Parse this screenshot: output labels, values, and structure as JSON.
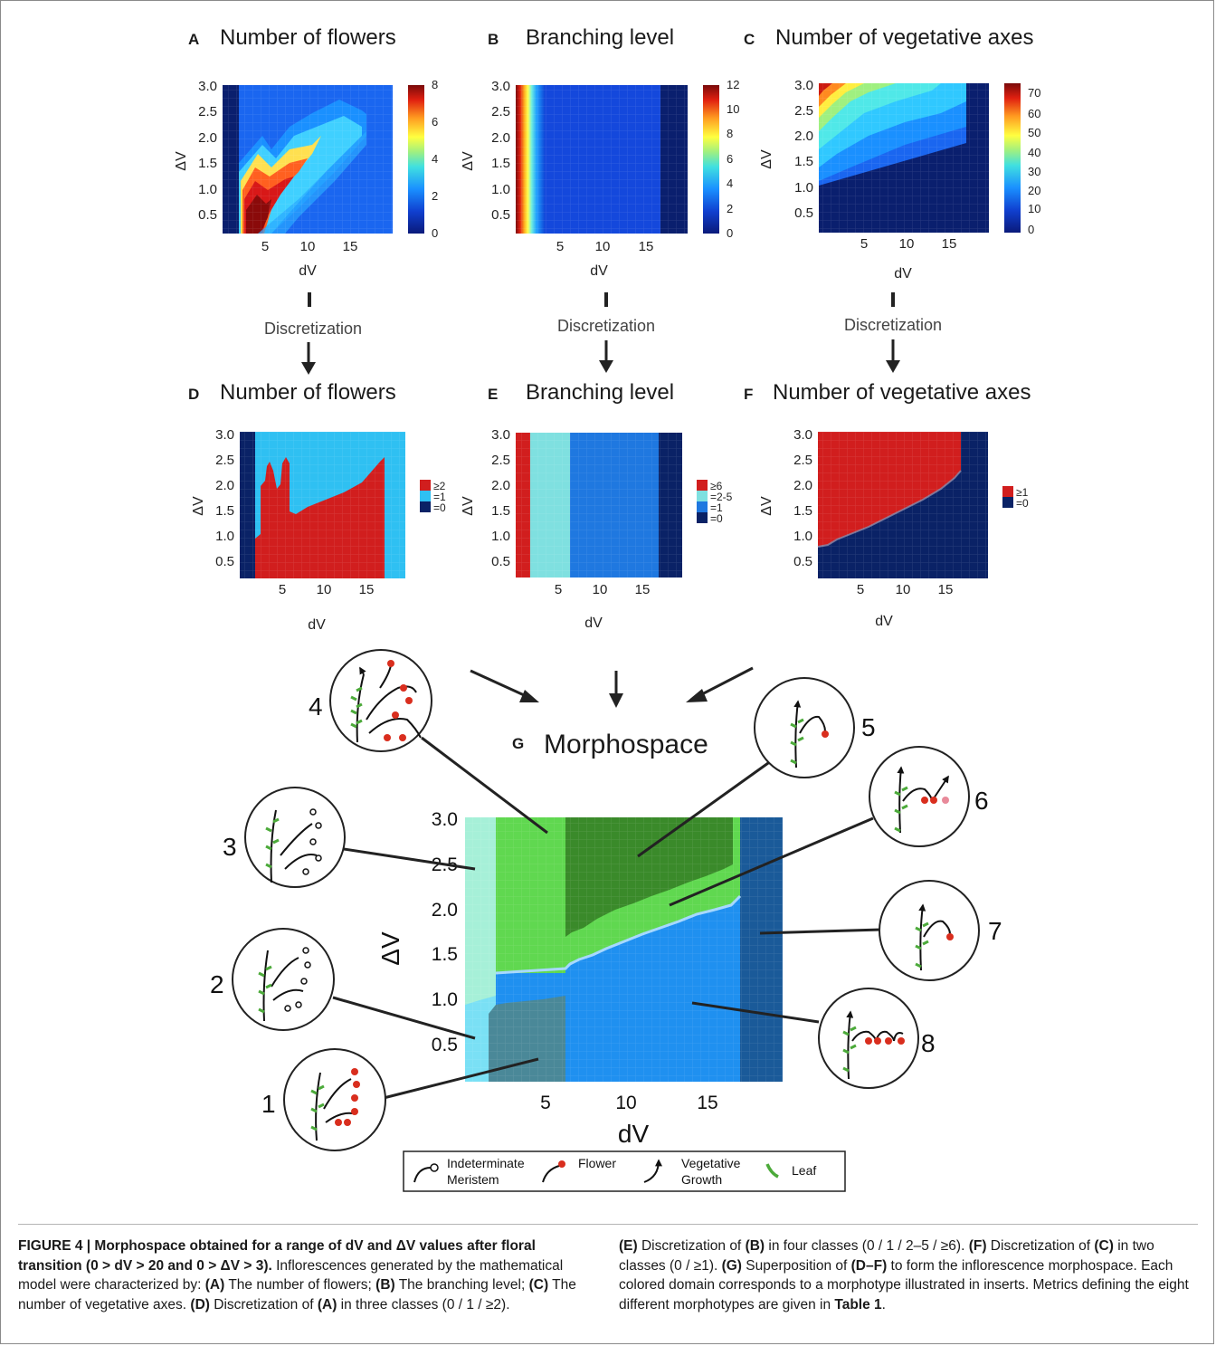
{
  "figure": {
    "panels": [
      {
        "letter": "A",
        "title": "Number of flowers"
      },
      {
        "letter": "B",
        "title": "Branching level"
      },
      {
        "letter": "C",
        "title": "Number of vegetative axes"
      },
      {
        "letter": "D",
        "title": "Number of flowers"
      },
      {
        "letter": "E",
        "title": "Branching level"
      },
      {
        "letter": "F",
        "title": "Number of vegetative axes"
      }
    ],
    "xlabel": "dV",
    "ylabel": "ΔV",
    "y_ticks": [
      "0.5",
      "1.0",
      "1.5",
      "2.0",
      "2.5",
      "3.0"
    ],
    "x_ticks": [
      "5",
      "10",
      "15"
    ],
    "discretization_label": "Discretization",
    "colorbars": {
      "A": [
        "0",
        "2",
        "4",
        "6",
        "8"
      ],
      "B": [
        "0",
        "2",
        "4",
        "6",
        "8",
        "10",
        "12"
      ],
      "C": [
        "0",
        "10",
        "20",
        "30",
        "40",
        "50",
        "60",
        "70"
      ]
    },
    "legends": {
      "D": [
        "≥2",
        "=1",
        "=0"
      ],
      "E": [
        "≥6",
        "=2-5",
        "=1",
        "=0"
      ],
      "F": [
        "≥1",
        "=0"
      ]
    },
    "morphospace": {
      "letter": "G",
      "title": "Morphospace",
      "morphotypes": [
        "1",
        "2",
        "3",
        "4",
        "5",
        "6",
        "7",
        "8"
      ]
    },
    "key": {
      "indeterminate": "Indeterminate",
      "meristem": "Meristem",
      "flower": "Flower",
      "vegetative": "Vegetative",
      "growth": "Growth",
      "leaf": "Leaf"
    },
    "colors": {
      "dark_navy": "#0a2266",
      "blue": "#1f78e0",
      "light_cyan": "#2fc0f2",
      "red": "#d32020",
      "turquoise": "#7fe0e0",
      "light_green": "#66dd44",
      "dark_green": "#3a8a2a",
      "leaf_green": "#4caa3a",
      "flower_red": "#d92e1e"
    }
  },
  "caption": {
    "left": [
      {
        "b": true,
        "t": "FIGURE 4 | Morphospace obtained for a range of "
      },
      {
        "b": true,
        "t": "dV"
      },
      {
        "b": true,
        "t": " and Δ"
      },
      {
        "b": true,
        "t": "V"
      },
      {
        "b": true,
        "t": " values after floral transition (0 > "
      },
      {
        "b": true,
        "t": "dV"
      },
      {
        "b": true,
        "t": " > 20 and 0 > Δ"
      },
      {
        "b": true,
        "t": "V"
      },
      {
        "b": true,
        "t": " > 3)."
      },
      {
        "b": false,
        "t": " Inflorescences generated by the mathematical model were characterized by: "
      },
      {
        "b": true,
        "t": "(A)"
      },
      {
        "b": false,
        "t": " The number of flowers; "
      },
      {
        "b": true,
        "t": "(B)"
      },
      {
        "b": false,
        "t": " The branching level; "
      },
      {
        "b": true,
        "t": "(C)"
      },
      {
        "b": false,
        "t": " The number of vegetative axes. "
      },
      {
        "b": true,
        "t": "(D)"
      },
      {
        "b": false,
        "t": " Discretization of "
      },
      {
        "b": true,
        "t": "(A)"
      },
      {
        "b": false,
        "t": " in three classes (0 / 1 / ≥2)."
      }
    ],
    "right": [
      {
        "b": true,
        "t": "(E)"
      },
      {
        "b": false,
        "t": " Discretization of "
      },
      {
        "b": true,
        "t": "(B)"
      },
      {
        "b": false,
        "t": " in four classes (0 / 1 / 2–5 / ≥6). "
      },
      {
        "b": true,
        "t": "(F)"
      },
      {
        "b": false,
        "t": " Discretization of "
      },
      {
        "b": true,
        "t": "(C)"
      },
      {
        "b": false,
        "t": " in two classes (0 / ≥1). "
      },
      {
        "b": true,
        "t": "(G)"
      },
      {
        "b": false,
        "t": " Superposition of "
      },
      {
        "b": true,
        "t": "(D–F)"
      },
      {
        "b": false,
        "t": " to form the inflorescence morphospace. Each colored domain corresponds to a morphotype illustrated in inserts. Metrics defining the eight different morphotypes are given in "
      },
      {
        "b": true,
        "t": "Table 1"
      },
      {
        "b": false,
        "t": "."
      }
    ]
  }
}
